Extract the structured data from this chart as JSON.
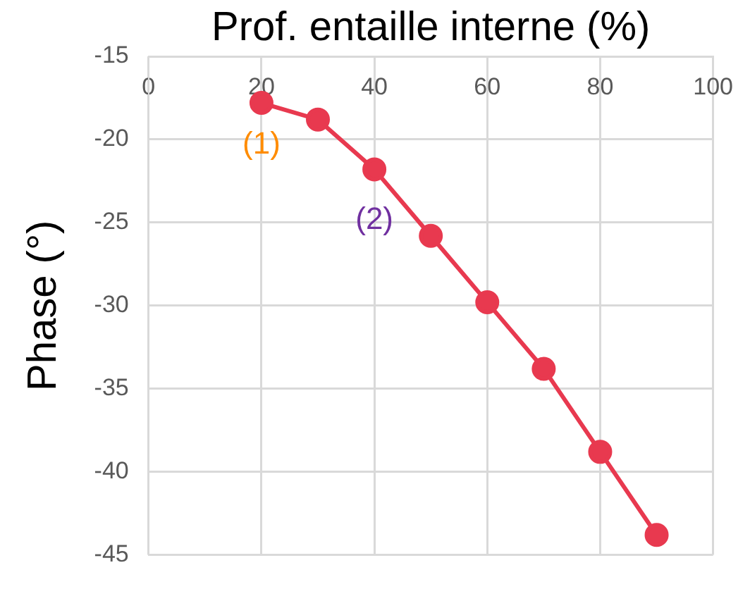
{
  "chart_data": {
    "type": "line",
    "xlabel": "Prof. entaille interne (%)",
    "ylabel": "Phase (°)",
    "x": [
      20,
      30,
      40,
      50,
      60,
      70,
      80,
      90
    ],
    "series": [
      {
        "color": "#e8394f",
        "values": [
          -17.8,
          -18.8,
          -21.8,
          -25.8,
          -29.8,
          -33.8,
          -38.8,
          -43.8
        ]
      }
    ],
    "xlim": [
      0,
      100
    ],
    "xticks": [
      0,
      20,
      40,
      60,
      80,
      100
    ],
    "ylim": [
      -45,
      -15
    ],
    "yticks": [
      -45,
      -40,
      -35,
      -30,
      -25,
      -20,
      -15
    ],
    "grid": true,
    "legend": false,
    "marker": "circle",
    "line_style": "solid",
    "annotations": [
      {
        "text": "(1)",
        "x": 20,
        "y": -17.8
      },
      {
        "text": "(2)",
        "x": 40,
        "y": -21.8
      }
    ]
  }
}
